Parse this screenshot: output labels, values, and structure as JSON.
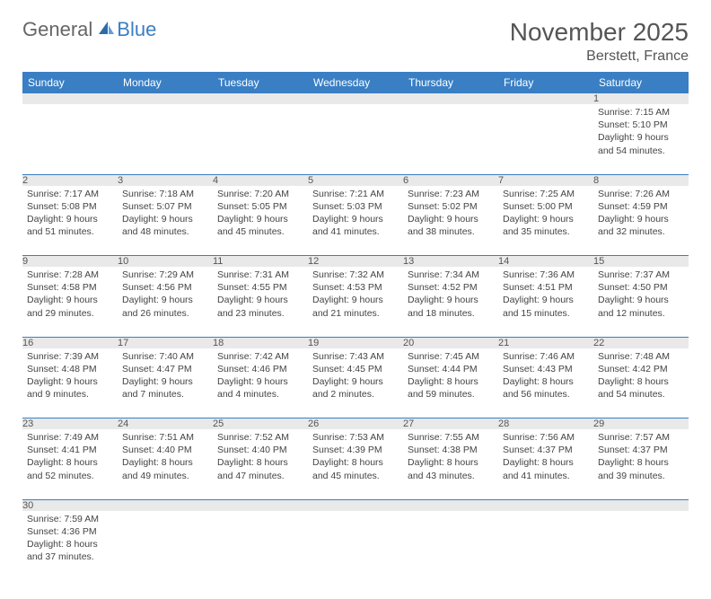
{
  "logo": {
    "text1": "General",
    "text2": "Blue"
  },
  "title": "November 2025",
  "location": "Berstett, France",
  "colors": {
    "header_bg": "#3a7fc4",
    "header_text": "#ffffff",
    "daynum_bg": "#e9e9e9",
    "text": "#444444",
    "border": "#3a7fc4"
  },
  "weekdays": [
    "Sunday",
    "Monday",
    "Tuesday",
    "Wednesday",
    "Thursday",
    "Friday",
    "Saturday"
  ],
  "weeks": [
    [
      null,
      null,
      null,
      null,
      null,
      null,
      {
        "n": "1",
        "sunrise": "Sunrise: 7:15 AM",
        "sunset": "Sunset: 5:10 PM",
        "daylight": "Daylight: 9 hours and 54 minutes."
      }
    ],
    [
      {
        "n": "2",
        "sunrise": "Sunrise: 7:17 AM",
        "sunset": "Sunset: 5:08 PM",
        "daylight": "Daylight: 9 hours and 51 minutes."
      },
      {
        "n": "3",
        "sunrise": "Sunrise: 7:18 AM",
        "sunset": "Sunset: 5:07 PM",
        "daylight": "Daylight: 9 hours and 48 minutes."
      },
      {
        "n": "4",
        "sunrise": "Sunrise: 7:20 AM",
        "sunset": "Sunset: 5:05 PM",
        "daylight": "Daylight: 9 hours and 45 minutes."
      },
      {
        "n": "5",
        "sunrise": "Sunrise: 7:21 AM",
        "sunset": "Sunset: 5:03 PM",
        "daylight": "Daylight: 9 hours and 41 minutes."
      },
      {
        "n": "6",
        "sunrise": "Sunrise: 7:23 AM",
        "sunset": "Sunset: 5:02 PM",
        "daylight": "Daylight: 9 hours and 38 minutes."
      },
      {
        "n": "7",
        "sunrise": "Sunrise: 7:25 AM",
        "sunset": "Sunset: 5:00 PM",
        "daylight": "Daylight: 9 hours and 35 minutes."
      },
      {
        "n": "8",
        "sunrise": "Sunrise: 7:26 AM",
        "sunset": "Sunset: 4:59 PM",
        "daylight": "Daylight: 9 hours and 32 minutes."
      }
    ],
    [
      {
        "n": "9",
        "sunrise": "Sunrise: 7:28 AM",
        "sunset": "Sunset: 4:58 PM",
        "daylight": "Daylight: 9 hours and 29 minutes."
      },
      {
        "n": "10",
        "sunrise": "Sunrise: 7:29 AM",
        "sunset": "Sunset: 4:56 PM",
        "daylight": "Daylight: 9 hours and 26 minutes."
      },
      {
        "n": "11",
        "sunrise": "Sunrise: 7:31 AM",
        "sunset": "Sunset: 4:55 PM",
        "daylight": "Daylight: 9 hours and 23 minutes."
      },
      {
        "n": "12",
        "sunrise": "Sunrise: 7:32 AM",
        "sunset": "Sunset: 4:53 PM",
        "daylight": "Daylight: 9 hours and 21 minutes."
      },
      {
        "n": "13",
        "sunrise": "Sunrise: 7:34 AM",
        "sunset": "Sunset: 4:52 PM",
        "daylight": "Daylight: 9 hours and 18 minutes."
      },
      {
        "n": "14",
        "sunrise": "Sunrise: 7:36 AM",
        "sunset": "Sunset: 4:51 PM",
        "daylight": "Daylight: 9 hours and 15 minutes."
      },
      {
        "n": "15",
        "sunrise": "Sunrise: 7:37 AM",
        "sunset": "Sunset: 4:50 PM",
        "daylight": "Daylight: 9 hours and 12 minutes."
      }
    ],
    [
      {
        "n": "16",
        "sunrise": "Sunrise: 7:39 AM",
        "sunset": "Sunset: 4:48 PM",
        "daylight": "Daylight: 9 hours and 9 minutes."
      },
      {
        "n": "17",
        "sunrise": "Sunrise: 7:40 AM",
        "sunset": "Sunset: 4:47 PM",
        "daylight": "Daylight: 9 hours and 7 minutes."
      },
      {
        "n": "18",
        "sunrise": "Sunrise: 7:42 AM",
        "sunset": "Sunset: 4:46 PM",
        "daylight": "Daylight: 9 hours and 4 minutes."
      },
      {
        "n": "19",
        "sunrise": "Sunrise: 7:43 AM",
        "sunset": "Sunset: 4:45 PM",
        "daylight": "Daylight: 9 hours and 2 minutes."
      },
      {
        "n": "20",
        "sunrise": "Sunrise: 7:45 AM",
        "sunset": "Sunset: 4:44 PM",
        "daylight": "Daylight: 8 hours and 59 minutes."
      },
      {
        "n": "21",
        "sunrise": "Sunrise: 7:46 AM",
        "sunset": "Sunset: 4:43 PM",
        "daylight": "Daylight: 8 hours and 56 minutes."
      },
      {
        "n": "22",
        "sunrise": "Sunrise: 7:48 AM",
        "sunset": "Sunset: 4:42 PM",
        "daylight": "Daylight: 8 hours and 54 minutes."
      }
    ],
    [
      {
        "n": "23",
        "sunrise": "Sunrise: 7:49 AM",
        "sunset": "Sunset: 4:41 PM",
        "daylight": "Daylight: 8 hours and 52 minutes."
      },
      {
        "n": "24",
        "sunrise": "Sunrise: 7:51 AM",
        "sunset": "Sunset: 4:40 PM",
        "daylight": "Daylight: 8 hours and 49 minutes."
      },
      {
        "n": "25",
        "sunrise": "Sunrise: 7:52 AM",
        "sunset": "Sunset: 4:40 PM",
        "daylight": "Daylight: 8 hours and 47 minutes."
      },
      {
        "n": "26",
        "sunrise": "Sunrise: 7:53 AM",
        "sunset": "Sunset: 4:39 PM",
        "daylight": "Daylight: 8 hours and 45 minutes."
      },
      {
        "n": "27",
        "sunrise": "Sunrise: 7:55 AM",
        "sunset": "Sunset: 4:38 PM",
        "daylight": "Daylight: 8 hours and 43 minutes."
      },
      {
        "n": "28",
        "sunrise": "Sunrise: 7:56 AM",
        "sunset": "Sunset: 4:37 PM",
        "daylight": "Daylight: 8 hours and 41 minutes."
      },
      {
        "n": "29",
        "sunrise": "Sunrise: 7:57 AM",
        "sunset": "Sunset: 4:37 PM",
        "daylight": "Daylight: 8 hours and 39 minutes."
      }
    ],
    [
      {
        "n": "30",
        "sunrise": "Sunrise: 7:59 AM",
        "sunset": "Sunset: 4:36 PM",
        "daylight": "Daylight: 8 hours and 37 minutes."
      },
      null,
      null,
      null,
      null,
      null,
      null
    ]
  ]
}
